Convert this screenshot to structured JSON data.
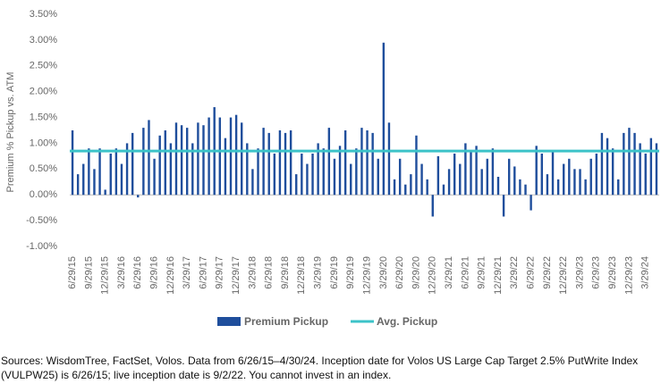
{
  "chart_data": {
    "type": "bar",
    "y_label": "Premium % Pickup vs. ATM",
    "categories": [
      "6/29/15",
      null,
      null,
      "9/29/15",
      null,
      null,
      "12/29/15",
      null,
      null,
      "3/29/16",
      null,
      null,
      "6/29/16",
      null,
      null,
      "9/29/16",
      null,
      null,
      "12/29/16",
      null,
      null,
      "3/29/17",
      null,
      null,
      "6/29/17",
      null,
      null,
      "9/29/17",
      null,
      null,
      "12/29/17",
      null,
      null,
      "3/29/18",
      null,
      null,
      "6/29/18",
      null,
      null,
      "9/29/18",
      null,
      null,
      "12/29/18",
      null,
      null,
      "3/29/19",
      null,
      null,
      "6/29/19",
      null,
      null,
      "9/29/19",
      null,
      null,
      "12/29/19",
      null,
      null,
      "3/29/20",
      null,
      null,
      "6/29/20",
      null,
      null,
      "9/29/20",
      null,
      null,
      "12/29/20",
      null,
      null,
      "3/29/21",
      null,
      null,
      "6/29/21",
      null,
      null,
      "9/29/21",
      null,
      null,
      "12/29/21",
      null,
      null,
      "3/29/22",
      null,
      null,
      "6/29/22",
      null,
      null,
      "9/29/22",
      null,
      null,
      "12/29/22",
      null,
      null,
      "3/29/23",
      null,
      null,
      "6/29/23",
      null,
      null,
      "9/29/23",
      null,
      null,
      "12/29/23",
      null,
      null,
      "3/29/24",
      null,
      null
    ],
    "series": [
      {
        "name": "Premium Pickup",
        "color": "#1f4e9c",
        "values": [
          1.25,
          0.4,
          0.6,
          0.9,
          0.5,
          0.9,
          0.1,
          0.8,
          0.9,
          0.6,
          1.0,
          1.2,
          -0.05,
          1.3,
          1.45,
          0.7,
          1.15,
          1.25,
          1.0,
          1.4,
          1.35,
          1.3,
          1.0,
          1.4,
          1.35,
          1.5,
          1.7,
          1.5,
          1.1,
          1.5,
          1.55,
          1.4,
          1.0,
          0.5,
          0.9,
          1.3,
          1.2,
          0.8,
          1.25,
          1.2,
          1.25,
          0.4,
          0.8,
          0.6,
          0.8,
          1.0,
          0.9,
          1.3,
          0.7,
          0.95,
          1.25,
          0.6,
          0.9,
          1.3,
          1.25,
          1.2,
          0.7,
          2.95,
          1.4,
          0.3,
          0.7,
          0.2,
          0.4,
          1.15,
          0.6,
          0.3,
          -0.42,
          0.75,
          0.2,
          0.5,
          0.8,
          0.6,
          1.0,
          0.85,
          0.95,
          0.5,
          0.7,
          0.9,
          0.35,
          -0.42,
          0.7,
          0.55,
          0.3,
          0.2,
          -0.3,
          0.95,
          0.8,
          0.4,
          0.85,
          0.3,
          0.6,
          0.7,
          0.5,
          0.5,
          0.3,
          0.7,
          0.8,
          1.2,
          1.1,
          0.9,
          0.3,
          1.2,
          1.3,
          1.2,
          1.0,
          0.8,
          1.1,
          1.0
        ]
      }
    ],
    "reference_line": {
      "name": "Avg. Pickup",
      "value": 0.85,
      "color": "#3cc3c8"
    },
    "ylim": [
      -1,
      3.5
    ],
    "yticks": [
      {
        "value": -1,
        "label": "-1.00%"
      },
      {
        "value": -0.5,
        "label": "-0.50%"
      },
      {
        "value": 0,
        "label": "0.00%"
      },
      {
        "value": 0.5,
        "label": "0.50%"
      },
      {
        "value": 1,
        "label": "1.00%"
      },
      {
        "value": 1.5,
        "label": "1.50%"
      },
      {
        "value": 2,
        "label": "2.00%"
      },
      {
        "value": 2.5,
        "label": "2.50%"
      },
      {
        "value": 3,
        "label": "3.00%"
      },
      {
        "value": 3.5,
        "label": "3.50%"
      }
    ],
    "note": [
      "Sources: WisdomTree, FactSet, Volos. Data from 6/26/15–4/30/24. Inception date for Volos US Large Cap Target 2.5% PutWrite Index",
      "(VULPW25) is 6/26/15; live inception date is 9/2/22. You cannot invest in an index."
    ]
  }
}
